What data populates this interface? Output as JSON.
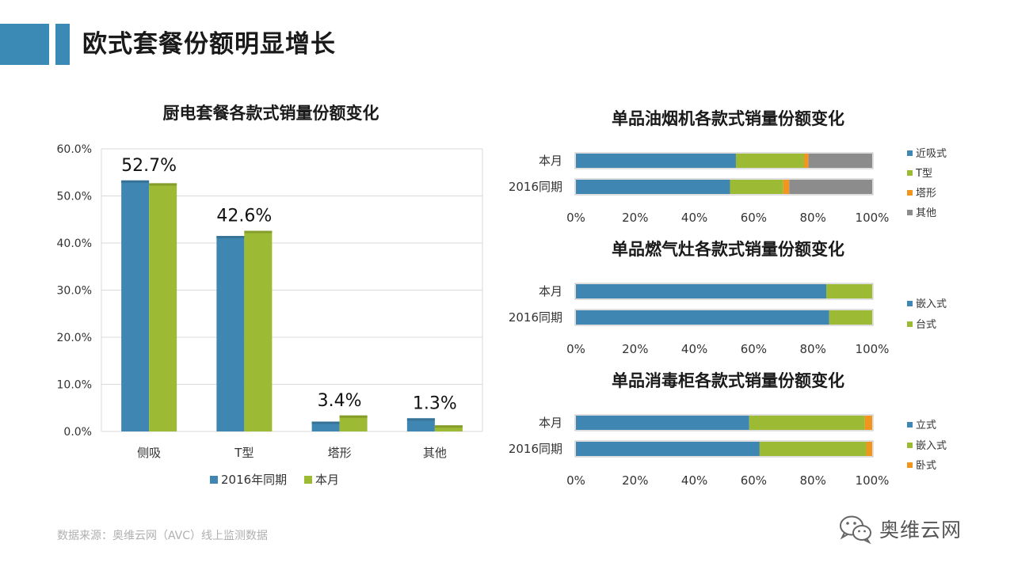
{
  "header": {
    "title": "欧式套餐份额明显增长"
  },
  "colors": {
    "blue": "#3f87b2",
    "green": "#9cba33",
    "orange": "#f1951f",
    "gray": "#8c8c8c",
    "accent": "#3a8ab5"
  },
  "chart_data": [
    {
      "id": "combo",
      "type": "bar",
      "title": "厨电套餐各款式销量份额变化",
      "categories": [
        "侧吸",
        "T型",
        "塔形",
        "其他"
      ],
      "series": [
        {
          "name": "2016年同期",
          "color": "#3f87b2",
          "values": [
            53.3,
            41.5,
            2.1,
            2.8
          ]
        },
        {
          "name": "本月",
          "color": "#9cba33",
          "values": [
            52.7,
            42.6,
            3.4,
            1.3
          ]
        }
      ],
      "data_labels": [
        "52.7%",
        "42.6%",
        "3.4%",
        "1.3%"
      ],
      "yticks": [
        "0.0%",
        "10.0%",
        "20.0%",
        "30.0%",
        "40.0%",
        "50.0%",
        "60.0%"
      ],
      "ylim": [
        0,
        60
      ],
      "legend": "bottom"
    },
    {
      "id": "hood",
      "type": "bar",
      "orientation": "horizontal-stacked-100",
      "title": "单品油烟机各款式销量份额变化",
      "categories": [
        "本月",
        "2016同期"
      ],
      "series": [
        {
          "name": "近吸式",
          "color": "#3f87b2",
          "values": [
            54,
            52
          ]
        },
        {
          "name": "T型",
          "color": "#9cba33",
          "values": [
            23,
            18
          ]
        },
        {
          "name": "塔形",
          "color": "#f1951f",
          "values": [
            1.5,
            2
          ]
        },
        {
          "name": "其他",
          "color": "#8c8c8c",
          "values": [
            21.5,
            28
          ]
        }
      ],
      "xticks": [
        "0%",
        "20%",
        "40%",
        "60%",
        "80%",
        "100%"
      ],
      "legend": "right"
    },
    {
      "id": "stove",
      "type": "bar",
      "orientation": "horizontal-stacked-100",
      "title": "单品燃气灶各款式销量份额变化",
      "categories": [
        "本月",
        "2016同期"
      ],
      "series": [
        {
          "name": "嵌入式",
          "color": "#3f87b2",
          "values": [
            84.5,
            85.5
          ]
        },
        {
          "name": "台式",
          "color": "#9cba33",
          "values": [
            15.5,
            14.5
          ]
        }
      ],
      "xticks": [
        "0%",
        "20%",
        "40%",
        "60%",
        "80%",
        "100%"
      ],
      "legend": "right"
    },
    {
      "id": "cabinet",
      "type": "bar",
      "orientation": "horizontal-stacked-100",
      "title": "单品消毒柜各款式销量份额变化",
      "categories": [
        "本月",
        "2016同期"
      ],
      "series": [
        {
          "name": "立式",
          "color": "#3f87b2",
          "values": [
            58.5,
            62
          ]
        },
        {
          "name": "嵌入式",
          "color": "#9cba33",
          "values": [
            39,
            36
          ]
        },
        {
          "name": "卧式",
          "color": "#f1951f",
          "values": [
            2.5,
            2
          ]
        }
      ],
      "xticks": [
        "0%",
        "20%",
        "40%",
        "60%",
        "80%",
        "100%"
      ],
      "legend": "right"
    }
  ],
  "footer": {
    "source": "数据来源：奥维云网（AVC）线上监测数据",
    "logo_text": "奥维云网"
  }
}
